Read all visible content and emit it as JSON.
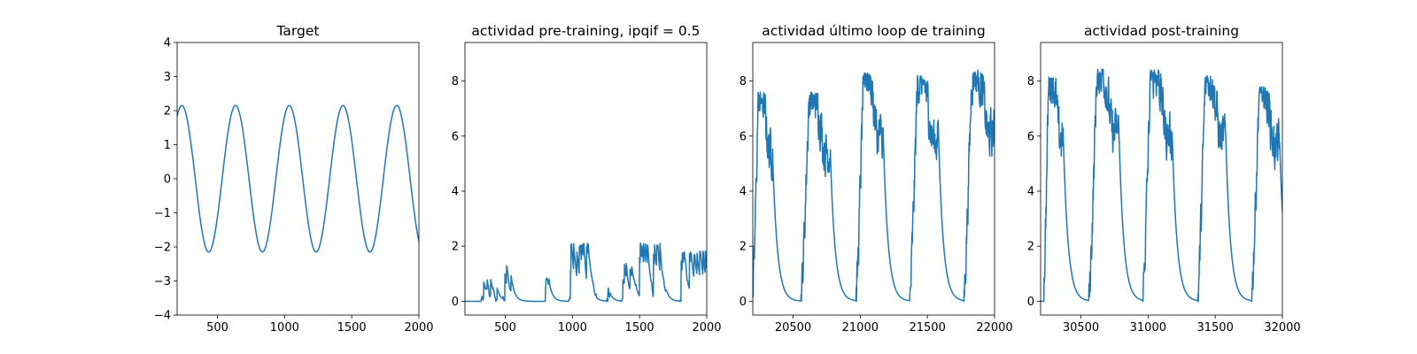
{
  "chart_data": [
    {
      "type": "line",
      "title": "Target",
      "xlim": [
        200,
        2000
      ],
      "ylim": [
        -4,
        4
      ],
      "xticks": [
        500,
        1000,
        1500,
        2000
      ],
      "yticks": [
        -4,
        -3,
        -2,
        -1,
        0,
        1,
        2,
        3,
        4
      ],
      "series": [
        {
          "kind": "sine",
          "x_start": 200,
          "x_end": 2000,
          "amplitude": 2.15,
          "period": 400,
          "peaks_at": [
            235,
            635,
            1035,
            1435,
            1835
          ],
          "troughs_at": [
            435,
            835,
            1235,
            1635
          ],
          "end_value": -1.65
        }
      ]
    },
    {
      "type": "line",
      "title": "actividad pre-training, ipqif = 0.5",
      "xlim": [
        200,
        2000
      ],
      "ylim": [
        -0.5,
        9.4
      ],
      "xticks": [
        500,
        1000,
        1500,
        2000
      ],
      "yticks": [
        0,
        2,
        4,
        6,
        8
      ],
      "series": [
        {
          "kind": "sparse-bursts",
          "x_start": 200,
          "x_end": 2000,
          "baseline": 0,
          "bursts": [
            {
              "start": 320,
              "end": 440,
              "peak": 0.9
            },
            {
              "start": 480,
              "end": 560,
              "peak": 1.4
            },
            {
              "start": 800,
              "end": 830,
              "peak": 0.9
            },
            {
              "start": 970,
              "end": 1180,
              "peak": 2.2
            },
            {
              "start": 1250,
              "end": 1280,
              "peak": 0.5
            },
            {
              "start": 1360,
              "end": 1480,
              "peak": 1.4
            },
            {
              "start": 1500,
              "end": 1700,
              "peak": 2.2
            },
            {
              "start": 1800,
              "end": 2000,
              "peak": 1.9
            }
          ],
          "decay_tau": 25
        }
      ]
    },
    {
      "type": "line",
      "title": "actividad último loop de training",
      "xlim": [
        20200,
        22000
      ],
      "ylim": [
        -0.5,
        9.4
      ],
      "xticks": [
        20500,
        21000,
        21500,
        22000
      ],
      "yticks": [
        0,
        2,
        4,
        6,
        8
      ],
      "series": [
        {
          "kind": "periodic-pulses",
          "x_start": 20200,
          "x_end": 22000,
          "pulses": [
            {
              "start": 20200,
              "end": 20350,
              "peak": 7.6
            },
            {
              "start": 20560,
              "end": 20780,
              "peak": 7.6
            },
            {
              "start": 20970,
              "end": 21170,
              "peak": 8.3
            },
            {
              "start": 21370,
              "end": 21580,
              "peak": 8.2
            },
            {
              "start": 21770,
              "end": 22000,
              "peak": 8.4
            }
          ],
          "decay_tau": 35
        }
      ]
    },
    {
      "type": "line",
      "title": "actividad post-training",
      "xlim": [
        30200,
        32000
      ],
      "ylim": [
        -0.5,
        9.4
      ],
      "xticks": [
        30500,
        31000,
        31500,
        32000
      ],
      "yticks": [
        0,
        2,
        4,
        6,
        8
      ],
      "series": [
        {
          "kind": "periodic-pulses",
          "x_start": 30200,
          "x_end": 32000,
          "pulses": [
            {
              "start": 30220,
              "end": 30370,
              "peak": 8.2
            },
            {
              "start": 30560,
              "end": 30780,
              "peak": 8.5
            },
            {
              "start": 30960,
              "end": 31180,
              "peak": 8.4
            },
            {
              "start": 31370,
              "end": 31580,
              "peak": 8.2
            },
            {
              "start": 31770,
              "end": 31980,
              "peak": 7.8
            }
          ],
          "decay_tau": 35
        }
      ]
    }
  ],
  "colors": {
    "series": "#1f77b4",
    "axes": "#000000",
    "background": "#ffffff"
  }
}
